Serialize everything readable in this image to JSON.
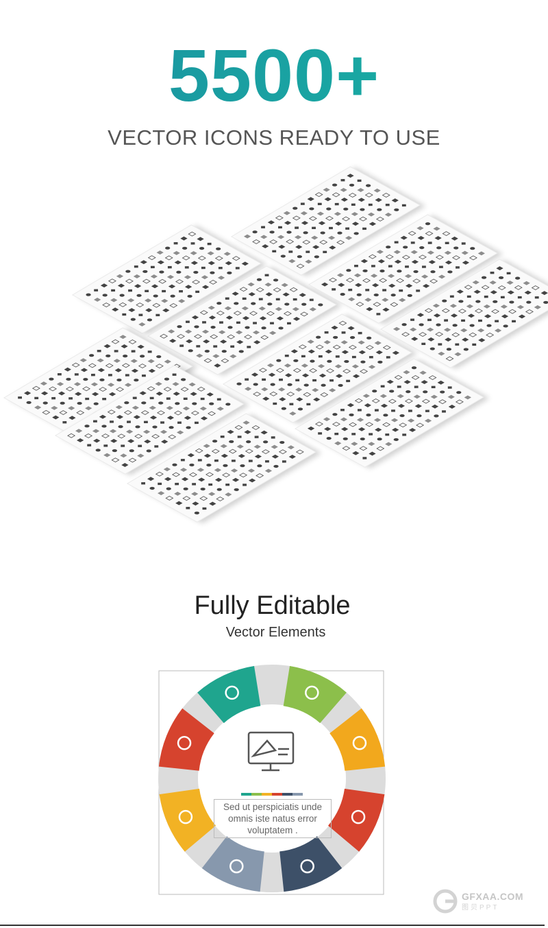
{
  "header": {
    "headline": "5500+",
    "subheadline": "VECTOR ICONS READY TO USE"
  },
  "section2": {
    "title": "Fully Editable",
    "subtitle": "Vector Elements",
    "center_text": "Sed ut perspiciatis unde omnis iste natus error voluptatem .",
    "segments": [
      {
        "color": "#1fa58e",
        "icon": "search-growth-icon"
      },
      {
        "color": "#8cbf4b",
        "icon": "dollar-click-icon"
      },
      {
        "color": "#f2a81d",
        "icon": "presentation-user-icon"
      },
      {
        "color": "#d6432e",
        "icon": "document-settings-icon"
      },
      {
        "color": "#3d5068",
        "icon": "easel-icon"
      },
      {
        "color": "#8798ad",
        "icon": "exchange-icon"
      },
      {
        "color": "#f2b224",
        "icon": "search-analysis-icon"
      },
      {
        "color": "#d6432e",
        "icon": "checkmark-cycle-icon"
      }
    ],
    "color_bar": [
      "#1fa58e",
      "#8cbf4b",
      "#f2b224",
      "#d6432e",
      "#3d5068",
      "#8798ad"
    ]
  },
  "watermark": {
    "text": "GFXAA.COM",
    "sub": "图贝PPT"
  }
}
